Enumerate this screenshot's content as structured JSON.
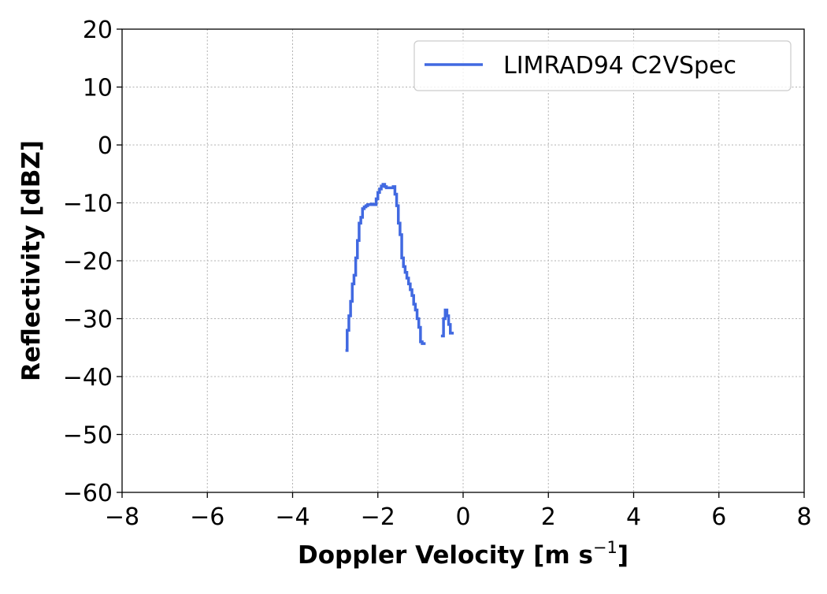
{
  "chart_data": {
    "type": "line",
    "title": "",
    "xlabel": "Doppler Velocity [m s",
    "xlabel_superscript": "−1",
    "xlabel_suffix": "]",
    "ylabel": "Reflectivity [dBZ]",
    "xlim": [
      -8,
      8
    ],
    "ylim": [
      -60,
      20
    ],
    "xticks": [
      -8,
      -6,
      -4,
      -2,
      0,
      2,
      4,
      6,
      8
    ],
    "yticks": [
      -60,
      -50,
      -40,
      -30,
      -20,
      -10,
      0,
      10,
      20
    ],
    "xtick_labels": [
      "−8",
      "−6",
      "−4",
      "−2",
      "0",
      "2",
      "4",
      "6",
      "8"
    ],
    "ytick_labels": [
      "−60",
      "−50",
      "−40",
      "−30",
      "−20",
      "−10",
      "0",
      "10",
      "20"
    ],
    "grid": true,
    "legend_position": "top-right",
    "line_style": "steps",
    "series": [
      {
        "name": "LIMRAD94 C2VSpec",
        "color": "#4169e1",
        "segments": [
          [
            [
              -2.76,
              -35.5
            ],
            [
              -2.72,
              -32.0
            ],
            [
              -2.68,
              -29.5
            ],
            [
              -2.64,
              -27.0
            ],
            [
              -2.6,
              -24.0
            ],
            [
              -2.56,
              -22.5
            ],
            [
              -2.52,
              -19.5
            ],
            [
              -2.48,
              -16.5
            ],
            [
              -2.44,
              -13.5
            ],
            [
              -2.4,
              -12.5
            ],
            [
              -2.36,
              -11.0
            ],
            [
              -2.32,
              -10.7
            ],
            [
              -2.28,
              -10.5
            ],
            [
              -2.24,
              -10.3
            ],
            [
              -2.2,
              -10.3
            ],
            [
              -2.16,
              -10.2
            ],
            [
              -2.12,
              -10.3
            ],
            [
              -2.08,
              -10.3
            ],
            [
              -2.04,
              -9.3
            ],
            [
              -2.0,
              -8.2
            ],
            [
              -1.96,
              -7.6
            ],
            [
              -1.92,
              -7.1
            ],
            [
              -1.88,
              -6.8
            ],
            [
              -1.84,
              -7.2
            ],
            [
              -1.8,
              -7.4
            ],
            [
              -1.76,
              -7.4
            ],
            [
              -1.72,
              -7.4
            ],
            [
              -1.68,
              -7.4
            ],
            [
              -1.64,
              -7.2
            ],
            [
              -1.6,
              -8.5
            ],
            [
              -1.56,
              -10.5
            ],
            [
              -1.52,
              -13.5
            ],
            [
              -1.48,
              -15.5
            ],
            [
              -1.44,
              -19.5
            ],
            [
              -1.4,
              -21.0
            ],
            [
              -1.36,
              -22.0
            ],
            [
              -1.32,
              -23.0
            ],
            [
              -1.28,
              -24.0
            ],
            [
              -1.24,
              -25.0
            ],
            [
              -1.2,
              -26.0
            ],
            [
              -1.16,
              -27.5
            ],
            [
              -1.12,
              -28.5
            ],
            [
              -1.08,
              -30.0
            ],
            [
              -1.04,
              -31.5
            ],
            [
              -1.0,
              -34.0
            ],
            [
              -0.96,
              -34.3
            ],
            [
              -0.92,
              -34.3
            ]
          ],
          [
            [
              -0.52,
              -33.0
            ],
            [
              -0.46,
              -30.0
            ],
            [
              -0.42,
              -28.5
            ],
            [
              -0.38,
              -29.5
            ],
            [
              -0.34,
              -31.0
            ],
            [
              -0.3,
              -32.5
            ],
            [
              -0.26,
              -32.5
            ]
          ]
        ]
      }
    ]
  }
}
